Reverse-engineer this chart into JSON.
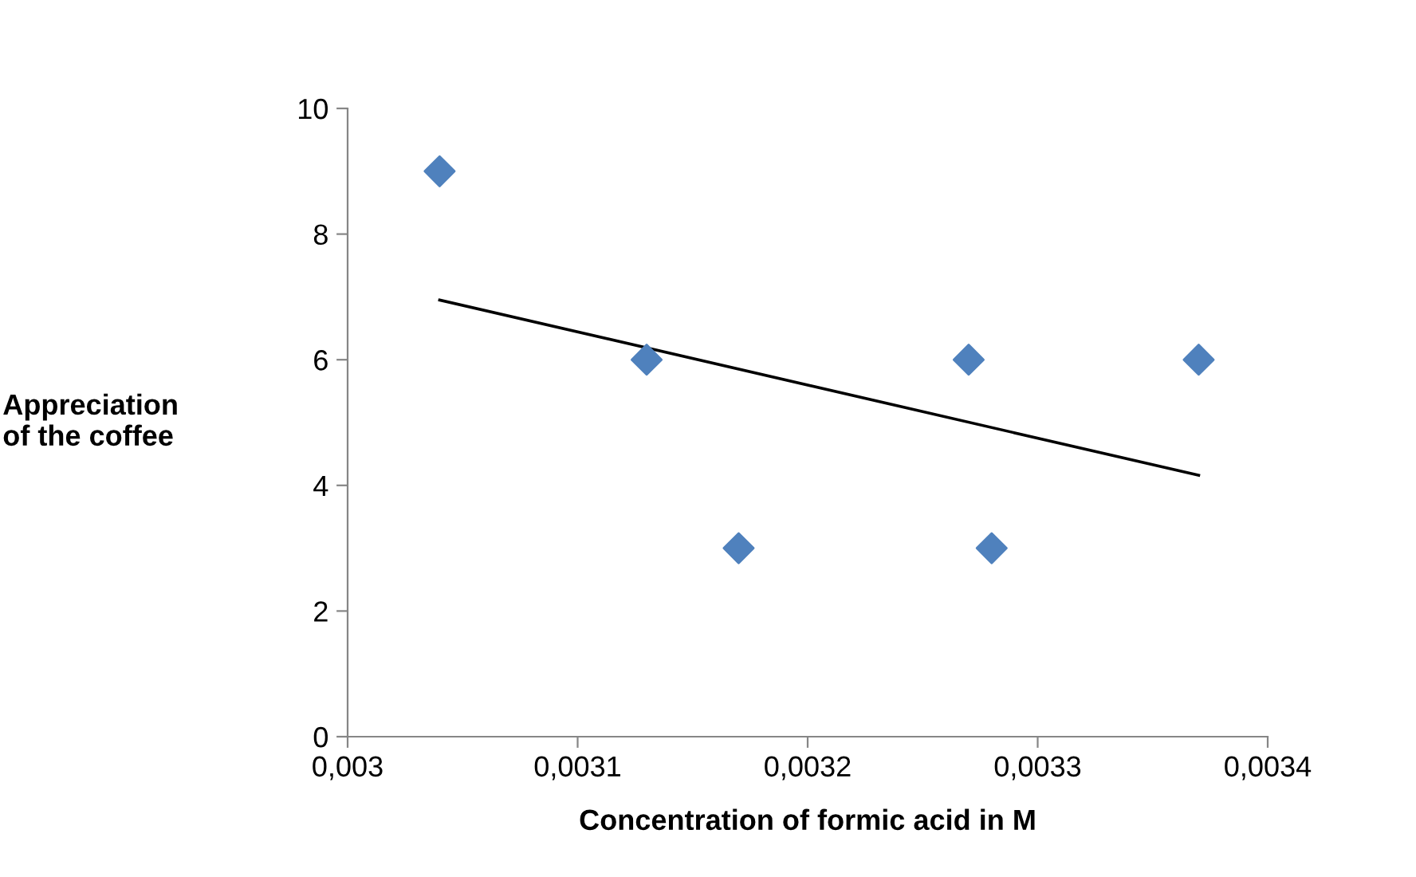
{
  "chart_data": {
    "type": "scatter",
    "xlabel": "Concentration of formic acid in M",
    "ylabel": "Appreciation\nof the coffee",
    "marker": "diamond",
    "grid": false,
    "legend": false,
    "xlim": [
      0.003,
      0.0034
    ],
    "ylim": [
      0,
      10
    ],
    "xticks": [
      {
        "value": 0.003,
        "label": "0,003"
      },
      {
        "value": 0.0031,
        "label": "0,0031"
      },
      {
        "value": 0.0032,
        "label": "0,0032"
      },
      {
        "value": 0.0033,
        "label": "0,0033"
      },
      {
        "value": 0.0034,
        "label": "0,0034"
      }
    ],
    "yticks": [
      0,
      2,
      4,
      6,
      8,
      10
    ],
    "series": [
      {
        "color": "#4f81bd",
        "x": [
          0.00304,
          0.00313,
          0.00317,
          0.00327,
          0.00328,
          0.00337
        ],
        "values": [
          9,
          6,
          3,
          6,
          3,
          6
        ]
      },
      {
        "type": "line",
        "color": "#000000",
        "marker": "none",
        "x": [
          0.00304,
          0.00337
        ],
        "values": [
          6.95,
          4.16
        ]
      }
    ]
  }
}
